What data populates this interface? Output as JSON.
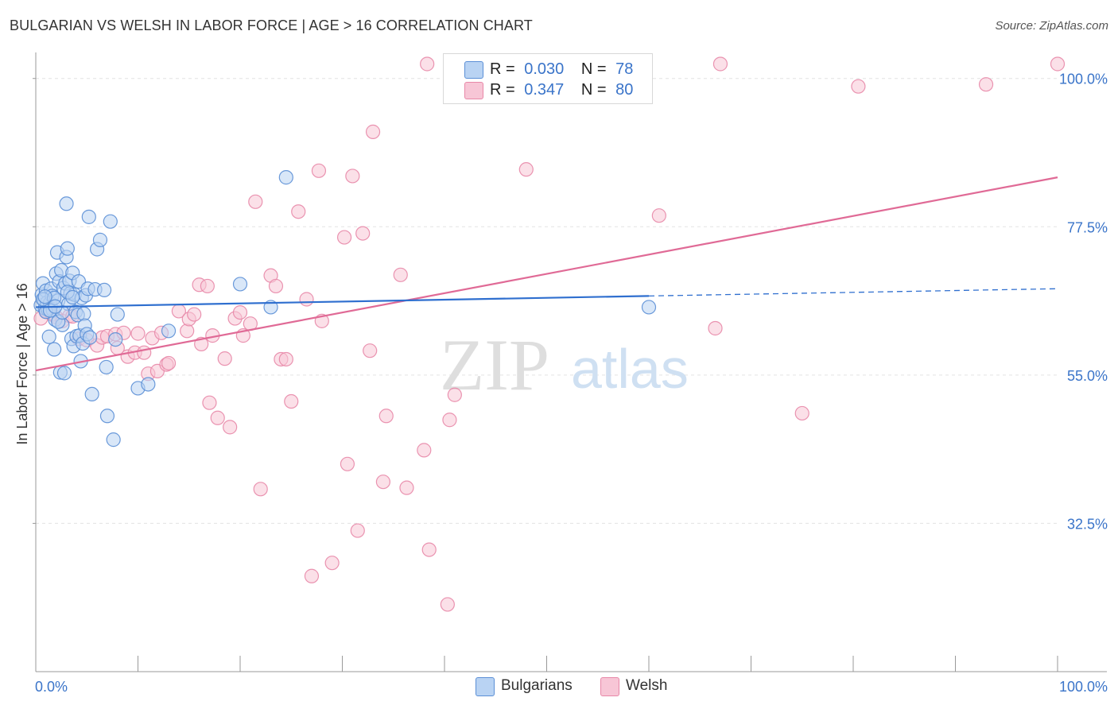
{
  "header": {
    "title": "BULGARIAN VS WELSH IN LABOR FORCE | AGE > 16 CORRELATION CHART",
    "source": "Source: ZipAtlas.com"
  },
  "watermark": {
    "zip": "ZIP",
    "atlas": "atlas"
  },
  "legend_top": {
    "rows": [
      {
        "r_label": "R =",
        "r_value": "0.030",
        "n_label": "N =",
        "n_value": "78"
      },
      {
        "r_label": "R =",
        "r_value": "0.347",
        "n_label": "N =",
        "n_value": "80"
      }
    ]
  },
  "legend_bottom": {
    "items": [
      "Bulgarians",
      "Welsh"
    ]
  },
  "colors": {
    "bulgarians_fill": "#b9d3f3",
    "bulgarians_stroke": "#5b8fd6",
    "bulgarians_line": "#2f6fcf",
    "welsh_fill": "#f7c6d6",
    "welsh_stroke": "#e888a8",
    "welsh_line": "#e06a96",
    "tick_label": "#3a74c9",
    "grid": "#e3e3e3"
  },
  "chart_data": {
    "type": "scatter",
    "title": "BULGARIAN VS WELSH IN LABOR FORCE | AGE > 16 CORRELATION CHART",
    "ylabel": "In Labor Force | Age > 16",
    "xlabel": "",
    "xlim": [
      0,
      100
    ],
    "ylim": [
      10,
      102.5
    ],
    "x_tick_labels": [
      "0.0%",
      "100.0%"
    ],
    "y_ticks": [
      32.5,
      55.0,
      77.5,
      100.0
    ],
    "y_tick_labels": [
      "32.5%",
      "55.0%",
      "77.5%",
      "100.0%"
    ],
    "grid": true,
    "legend_position": "top-center",
    "series": [
      {
        "name": "Bulgarians",
        "R": 0.03,
        "N": 78,
        "trend": {
          "x": [
            0,
            60
          ],
          "y": [
            65.3,
            67.0
          ],
          "dashed_extension": {
            "x": [
              60,
              100
            ],
            "y": [
              67.0,
              68.1
            ]
          }
        },
        "points": [
          [
            0.5,
            65.6
          ],
          [
            0.6,
            67.2
          ],
          [
            0.7,
            68.9
          ],
          [
            0.8,
            66.4
          ],
          [
            0.9,
            65.1
          ],
          [
            1.0,
            67.8
          ],
          [
            1.1,
            66.0
          ],
          [
            1.2,
            64.9
          ],
          [
            1.3,
            60.8
          ],
          [
            1.4,
            65.9
          ],
          [
            1.5,
            68.1
          ],
          [
            1.6,
            67.0
          ],
          [
            1.7,
            64.8
          ],
          [
            1.8,
            58.9
          ],
          [
            1.9,
            63.4
          ],
          [
            2.0,
            70.4
          ],
          [
            2.1,
            73.6
          ],
          [
            2.2,
            66.3
          ],
          [
            2.3,
            69.2
          ],
          [
            2.4,
            55.4
          ],
          [
            2.5,
            70.9
          ],
          [
            2.6,
            62.6
          ],
          [
            2.7,
            68.2
          ],
          [
            2.8,
            55.3
          ],
          [
            2.9,
            68.9
          ],
          [
            3.0,
            72.9
          ],
          [
            3.0,
            81.0
          ],
          [
            3.1,
            74.2
          ],
          [
            3.2,
            65.8
          ],
          [
            3.3,
            69.3
          ],
          [
            3.4,
            67.4
          ],
          [
            3.5,
            60.5
          ],
          [
            3.6,
            70.5
          ],
          [
            3.7,
            59.4
          ],
          [
            3.8,
            67.2
          ],
          [
            3.9,
            64.6
          ],
          [
            4.0,
            60.9
          ],
          [
            4.1,
            64.1
          ],
          [
            4.2,
            69.2
          ],
          [
            4.3,
            61.0
          ],
          [
            4.4,
            57.1
          ],
          [
            4.5,
            66.7
          ],
          [
            4.6,
            59.8
          ],
          [
            4.7,
            64.3
          ],
          [
            4.8,
            62.5
          ],
          [
            4.9,
            67.1
          ],
          [
            5.0,
            61.2
          ],
          [
            5.1,
            68.1
          ],
          [
            5.2,
            79.0
          ],
          [
            5.3,
            60.7
          ],
          [
            5.5,
            52.1
          ],
          [
            5.8,
            68.0
          ],
          [
            6.0,
            74.1
          ],
          [
            6.3,
            75.5
          ],
          [
            6.7,
            67.9
          ],
          [
            6.9,
            56.2
          ],
          [
            7.0,
            48.8
          ],
          [
            7.3,
            78.3
          ],
          [
            7.6,
            45.2
          ],
          [
            7.8,
            60.4
          ],
          [
            8.0,
            64.2
          ],
          [
            10.0,
            53.0
          ],
          [
            11.0,
            53.6
          ],
          [
            13.0,
            61.7
          ],
          [
            20.0,
            68.8
          ],
          [
            23.0,
            65.3
          ],
          [
            24.5,
            85.0
          ],
          [
            1.0,
            64.6
          ],
          [
            0.7,
            66.5
          ],
          [
            1.8,
            66.7
          ],
          [
            2.2,
            63.1
          ],
          [
            2.6,
            64.5
          ],
          [
            3.1,
            67.6
          ],
          [
            3.6,
            66.8
          ],
          [
            1.4,
            64.8
          ],
          [
            1.9,
            65.4
          ],
          [
            0.9,
            66.9
          ],
          [
            60.0,
            65.3
          ]
        ]
      },
      {
        "name": "Welsh",
        "R": 0.347,
        "N": 80,
        "trend": {
          "x": [
            0,
            100
          ],
          "y": [
            55.7,
            85.0
          ]
        },
        "points": [
          [
            0.5,
            63.6
          ],
          [
            1.0,
            64.7
          ],
          [
            1.6,
            64.2
          ],
          [
            2.0,
            63.8
          ],
          [
            2.6,
            63.2
          ],
          [
            3.3,
            64.0
          ],
          [
            3.6,
            63.9
          ],
          [
            4.2,
            60.5
          ],
          [
            5.0,
            60.3
          ],
          [
            6.0,
            59.5
          ],
          [
            6.5,
            60.7
          ],
          [
            7.0,
            60.9
          ],
          [
            7.8,
            61.2
          ],
          [
            8.0,
            59.1
          ],
          [
            8.6,
            61.4
          ],
          [
            9.0,
            57.8
          ],
          [
            9.7,
            58.4
          ],
          [
            10.0,
            61.3
          ],
          [
            10.6,
            58.4
          ],
          [
            11.0,
            55.2
          ],
          [
            11.4,
            60.6
          ],
          [
            11.9,
            55.6
          ],
          [
            12.3,
            61.4
          ],
          [
            12.8,
            56.6
          ],
          [
            13.0,
            56.8
          ],
          [
            14.0,
            64.7
          ],
          [
            14.8,
            61.7
          ],
          [
            15.0,
            63.5
          ],
          [
            15.5,
            64.2
          ],
          [
            16.0,
            68.7
          ],
          [
            16.2,
            59.7
          ],
          [
            16.8,
            68.5
          ],
          [
            17.0,
            50.8
          ],
          [
            17.3,
            61.0
          ],
          [
            17.8,
            48.5
          ],
          [
            18.5,
            57.5
          ],
          [
            19.0,
            47.1
          ],
          [
            19.5,
            63.6
          ],
          [
            20.0,
            64.5
          ],
          [
            20.3,
            61.0
          ],
          [
            21.0,
            62.8
          ],
          [
            21.5,
            81.3
          ],
          [
            22.0,
            37.7
          ],
          [
            23.0,
            70.1
          ],
          [
            23.5,
            68.5
          ],
          [
            24.0,
            57.4
          ],
          [
            24.5,
            57.4
          ],
          [
            25.0,
            51.0
          ],
          [
            25.7,
            79.8
          ],
          [
            26.5,
            66.5
          ],
          [
            27.0,
            24.5
          ],
          [
            27.7,
            86.0
          ],
          [
            28.0,
            63.2
          ],
          [
            29.0,
            26.5
          ],
          [
            30.2,
            75.9
          ],
          [
            30.5,
            41.5
          ],
          [
            31.0,
            85.2
          ],
          [
            31.5,
            31.4
          ],
          [
            32.0,
            76.5
          ],
          [
            32.7,
            58.7
          ],
          [
            33.0,
            91.9
          ],
          [
            34.0,
            38.8
          ],
          [
            34.3,
            48.8
          ],
          [
            35.7,
            70.2
          ],
          [
            36.3,
            37.9
          ],
          [
            38.0,
            43.6
          ],
          [
            38.3,
            102.2
          ],
          [
            38.5,
            28.5
          ],
          [
            40.3,
            20.2
          ],
          [
            40.5,
            48.2
          ],
          [
            41.0,
            52.0
          ],
          [
            42.0,
            102.2
          ],
          [
            48.0,
            86.2
          ],
          [
            61.0,
            79.2
          ],
          [
            66.5,
            62.1
          ],
          [
            67.0,
            102.2
          ],
          [
            75.0,
            49.2
          ],
          [
            80.5,
            98.8
          ],
          [
            93.0,
            99.1
          ],
          [
            100.0,
            102.2
          ]
        ]
      }
    ]
  }
}
